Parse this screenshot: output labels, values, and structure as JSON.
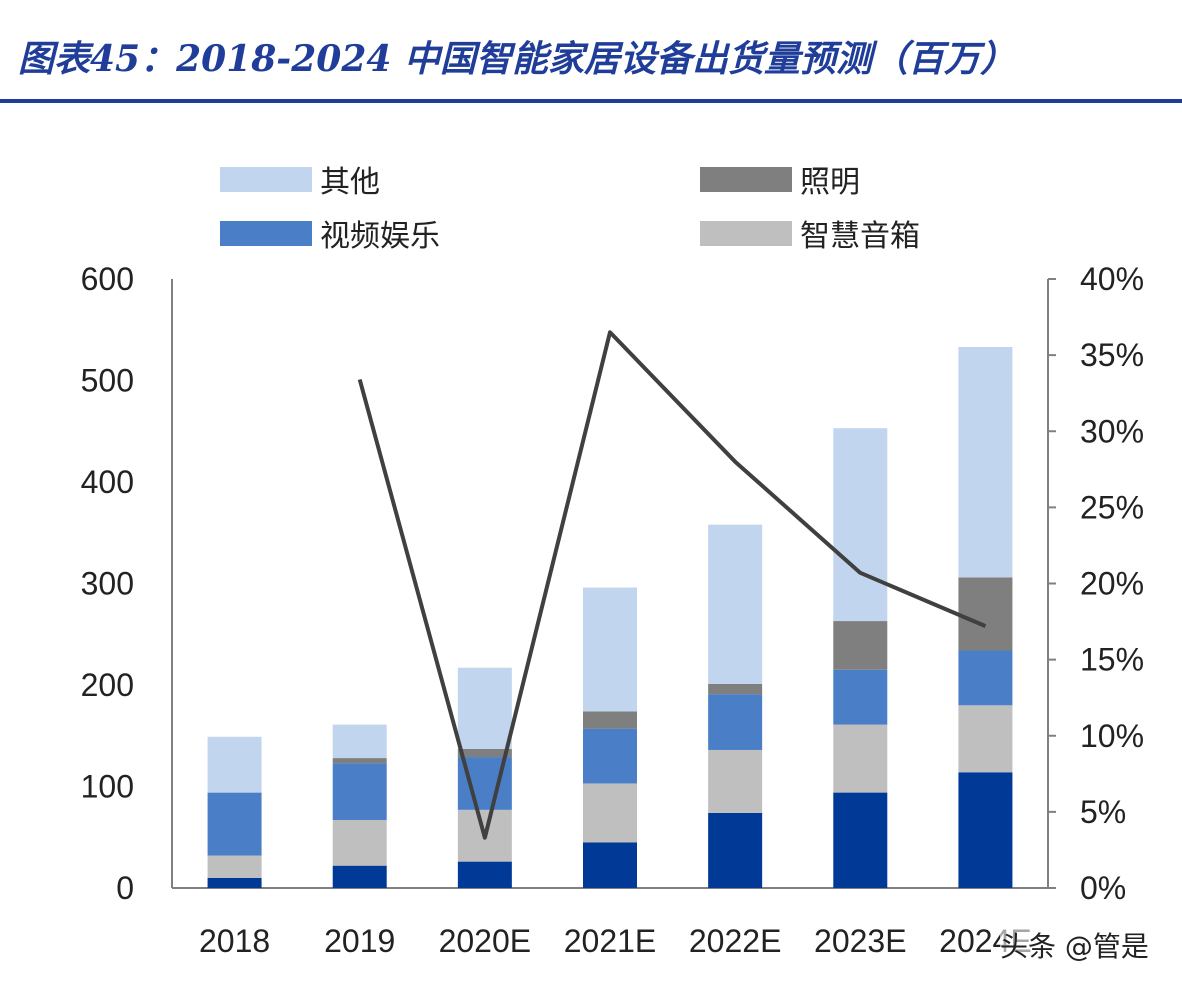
{
  "title": "图表45：2018-2024 中国智能家居设备出货量预测（百万）",
  "watermark": "头条 @管是",
  "chart_data": {
    "type": "bar",
    "stacked": true,
    "categories": [
      "2018",
      "2019",
      "2020E",
      "2021E",
      "2022E",
      "2023E",
      "2024E"
    ],
    "series": [
      {
        "values": [
          10,
          22,
          26,
          45,
          74,
          94,
          114
        ],
        "color": "#003a96"
      },
      {
        "name": "智慧音箱",
        "values": [
          22,
          45,
          51,
          58,
          62,
          67,
          66
        ],
        "color": "#bfbfbf"
      },
      {
        "name": "视频娱乐",
        "values": [
          62,
          56,
          52,
          54,
          55,
          54,
          54
        ],
        "color": "#4a7fc8"
      },
      {
        "name": "照明",
        "values": [
          0,
          5,
          8,
          17,
          10,
          48,
          72
        ],
        "color": "#7f7f7f"
      },
      {
        "name": "其他",
        "values": [
          55,
          33,
          80,
          122,
          157,
          190,
          227
        ],
        "color": "#c2d5ee"
      }
    ],
    "line": {
      "axis": "right",
      "color": "#404040",
      "values": [
        null,
        33.4,
        3.3,
        36.5,
        28.0,
        20.7,
        17.2
      ]
    },
    "ylim": [
      0,
      600
    ],
    "yticks": [
      "0",
      "100",
      "200",
      "300",
      "400",
      "500",
      "600"
    ],
    "y2lim": [
      0,
      40
    ],
    "y2ticks": [
      "0%",
      "5%",
      "10%",
      "15%",
      "20%",
      "25%",
      "30%",
      "35%",
      "40%"
    ],
    "legend_position": "top",
    "grid": false
  }
}
